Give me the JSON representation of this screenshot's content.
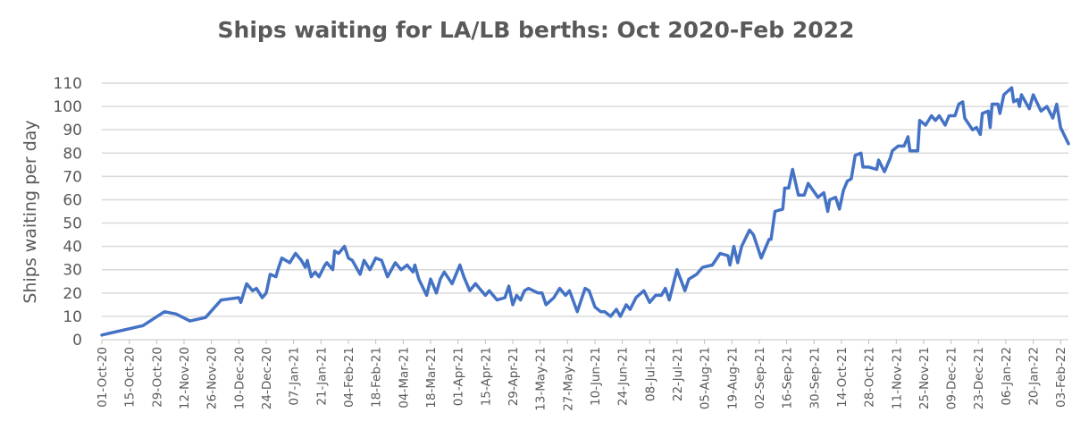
{
  "chart_data": {
    "type": "line",
    "title": "Ships waiting for LA/LB berths: Oct 2020-Feb 2022",
    "xlabel": "",
    "ylabel": "Ships waiting per day",
    "ylim": [
      0,
      110
    ],
    "yticks": [
      0,
      10,
      20,
      30,
      40,
      50,
      60,
      70,
      80,
      90,
      100,
      110
    ],
    "grid": true,
    "legend": "none",
    "color": "#4472C4",
    "x_unit": "days since 01-Oct-20",
    "xlim": [
      0,
      494
    ],
    "xtick_step_days": 14,
    "xtick_labels": [
      "01-Oct-20",
      "15-Oct-20",
      "29-Oct-20",
      "12-Nov-20",
      "26-Nov-20",
      "10-Dec-20",
      "24-Dec-20",
      "07-Jan-21",
      "21-Jan-21",
      "04-Feb-21",
      "18-Feb-21",
      "04-Mar-21",
      "18-Mar-21",
      "01-Apr-21",
      "15-Apr-21",
      "29-Apr-21",
      "13-May-21",
      "27-May-21",
      "10-Jun-21",
      "24-Jun-21",
      "08-Jul-21",
      "22-Jul-21",
      "05-Aug-21",
      "19-Aug-21",
      "02-Sep-21",
      "16-Sep-21",
      "30-Sep-21",
      "14-Oct-21",
      "28-Oct-21",
      "11-Nov-21",
      "25-Nov-21",
      "09-Dec-21",
      "23-Dec-21",
      "06-Jan-22",
      "20-Jan-22",
      "03-Feb-22"
    ],
    "series": [
      {
        "name": "Ships waiting per day",
        "points": [
          [
            0,
            2
          ],
          [
            21,
            6
          ],
          [
            32,
            12
          ],
          [
            38,
            11
          ],
          [
            45,
            8
          ],
          [
            53,
            9.5
          ],
          [
            61,
            17
          ],
          [
            70,
            18
          ],
          [
            71,
            16
          ],
          [
            74,
            24
          ],
          [
            77,
            21
          ],
          [
            79,
            22
          ],
          [
            82,
            18
          ],
          [
            84,
            20
          ],
          [
            86,
            28
          ],
          [
            89,
            27
          ],
          [
            90,
            30
          ],
          [
            92,
            35
          ],
          [
            96,
            33
          ],
          [
            99,
            37
          ],
          [
            102,
            34
          ],
          [
            104,
            31
          ],
          [
            105,
            34
          ],
          [
            107,
            27
          ],
          [
            109,
            29
          ],
          [
            111,
            27
          ],
          [
            114,
            32
          ],
          [
            115,
            33
          ],
          [
            118,
            30
          ],
          [
            119,
            38
          ],
          [
            121,
            37
          ],
          [
            124,
            40
          ],
          [
            126,
            35
          ],
          [
            128,
            34
          ],
          [
            132,
            28
          ],
          [
            134,
            34
          ],
          [
            137,
            30
          ],
          [
            140,
            35
          ],
          [
            143,
            34
          ],
          [
            146,
            27
          ],
          [
            150,
            33
          ],
          [
            153,
            30
          ],
          [
            156,
            32
          ],
          [
            159,
            29
          ],
          [
            160,
            32
          ],
          [
            162,
            26
          ],
          [
            166,
            19
          ],
          [
            168,
            26
          ],
          [
            171,
            20
          ],
          [
            173,
            26
          ],
          [
            175,
            29
          ],
          [
            179,
            24
          ],
          [
            183,
            32
          ],
          [
            185,
            27
          ],
          [
            188,
            21
          ],
          [
            191,
            24
          ],
          [
            193,
            22
          ],
          [
            196,
            19
          ],
          [
            198,
            21
          ],
          [
            202,
            17
          ],
          [
            206,
            18
          ],
          [
            208,
            23
          ],
          [
            210,
            15
          ],
          [
            212,
            19
          ],
          [
            214,
            17
          ],
          [
            216,
            21
          ],
          [
            218,
            22
          ],
          [
            223,
            20
          ],
          [
            225,
            20
          ],
          [
            227,
            15
          ],
          [
            231,
            18
          ],
          [
            234,
            22
          ],
          [
            237,
            19
          ],
          [
            239,
            21
          ],
          [
            243,
            12
          ],
          [
            247,
            22
          ],
          [
            249,
            21
          ],
          [
            252,
            14
          ],
          [
            255,
            12
          ],
          [
            257,
            12
          ],
          [
            260,
            10
          ],
          [
            263,
            13
          ],
          [
            265,
            10
          ],
          [
            268,
            15
          ],
          [
            270,
            13
          ],
          [
            273,
            18
          ],
          [
            277,
            21
          ],
          [
            280,
            16
          ],
          [
            283,
            19
          ],
          [
            286,
            19
          ],
          [
            288,
            22
          ],
          [
            290,
            17
          ],
          [
            294,
            30
          ],
          [
            298,
            21
          ],
          [
            300,
            26
          ],
          [
            304,
            28
          ],
          [
            307,
            31
          ],
          [
            312,
            32
          ],
          [
            316,
            37
          ],
          [
            320,
            36
          ],
          [
            321,
            32
          ],
          [
            323,
            40
          ],
          [
            325,
            33
          ],
          [
            327,
            40
          ],
          [
            331,
            47
          ],
          [
            333,
            45
          ],
          [
            337,
            35
          ],
          [
            341,
            43
          ],
          [
            342,
            43
          ],
          [
            344,
            55
          ],
          [
            348,
            56
          ],
          [
            349,
            65
          ],
          [
            351,
            65
          ],
          [
            353,
            73
          ],
          [
            356,
            62
          ],
          [
            359,
            62
          ],
          [
            361,
            67
          ],
          [
            366,
            61
          ],
          [
            369,
            63
          ],
          [
            371,
            55
          ],
          [
            372,
            60
          ],
          [
            375,
            61
          ],
          [
            377,
            56
          ],
          [
            379,
            64
          ],
          [
            381,
            68
          ],
          [
            383,
            69
          ],
          [
            385,
            79
          ],
          [
            388,
            80
          ],
          [
            389,
            74
          ],
          [
            392,
            74
          ],
          [
            396,
            73
          ],
          [
            397,
            77
          ],
          [
            400,
            72
          ],
          [
            403,
            78
          ],
          [
            404,
            81
          ],
          [
            407,
            83
          ],
          [
            410,
            83
          ],
          [
            412,
            87
          ],
          [
            413,
            81
          ],
          [
            417,
            81
          ],
          [
            418,
            94
          ],
          [
            421,
            92
          ],
          [
            424,
            96
          ],
          [
            426,
            94
          ],
          [
            428,
            96
          ],
          [
            431,
            92
          ],
          [
            433,
            96
          ],
          [
            436,
            96
          ],
          [
            438,
            101
          ],
          [
            440,
            102
          ],
          [
            441,
            95
          ],
          [
            445,
            90
          ],
          [
            447,
            91
          ],
          [
            449,
            88
          ],
          [
            450,
            97
          ],
          [
            453,
            98
          ],
          [
            454,
            91
          ],
          [
            455,
            101
          ],
          [
            458,
            101
          ],
          [
            459,
            97
          ],
          [
            461,
            105
          ],
          [
            465,
            108
          ],
          [
            466,
            102
          ],
          [
            468,
            103
          ],
          [
            469,
            100
          ],
          [
            470,
            105
          ],
          [
            474,
            99
          ],
          [
            476,
            105
          ],
          [
            480,
            98
          ],
          [
            483,
            100
          ],
          [
            486,
            95
          ],
          [
            488,
            101
          ],
          [
            490,
            91
          ],
          [
            494,
            84
          ]
        ]
      }
    ]
  }
}
